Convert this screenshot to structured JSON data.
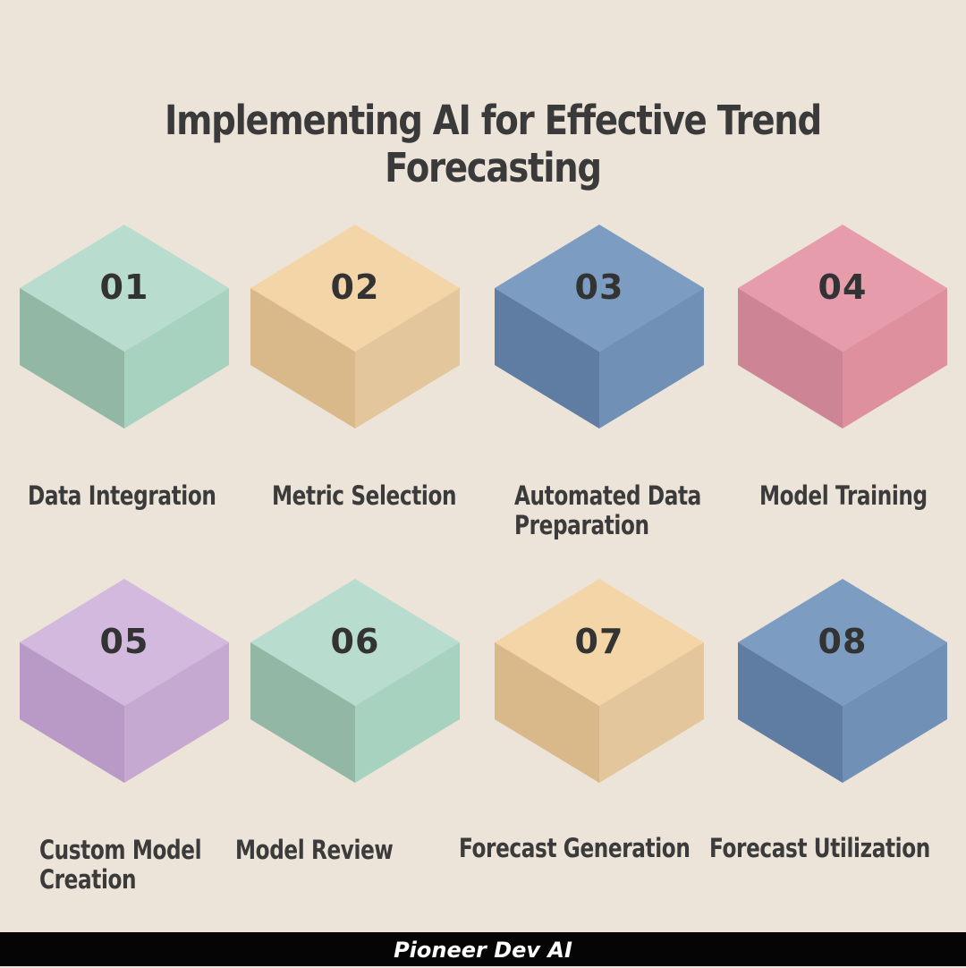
{
  "title": "Implementing AI for Effective Trend Forecasting",
  "steps": [
    {
      "number": "01",
      "label_lines": [
        "Data Integration"
      ],
      "colors": {
        "top": "#b8dccd",
        "left": "#92b8a5",
        "right": "#a7d2bf"
      }
    },
    {
      "number": "02",
      "label_lines": [
        "Metric Selection"
      ],
      "colors": {
        "top": "#f4d5a8",
        "left": "#d9b88a",
        "right": "#e3c69b"
      }
    },
    {
      "number": "03",
      "label_lines": [
        "Automated Data",
        "Preparation"
      ],
      "colors": {
        "top": "#7c9cc2",
        "left": "#5f7ca2",
        "right": "#7090b6"
      }
    },
    {
      "number": "04",
      "label_lines": [
        "Model Training"
      ],
      "colors": {
        "top": "#e79cab",
        "left": "#cd8595",
        "right": "#df909f"
      }
    },
    {
      "number": "05",
      "label_lines": [
        "Custom Model",
        "Creation"
      ],
      "colors": {
        "top": "#d3b9de",
        "left": "#b999c6",
        "right": "#c6a9d1"
      }
    },
    {
      "number": "06",
      "label_lines": [
        "Model Review"
      ],
      "colors": {
        "top": "#b8dccd",
        "left": "#92b8a5",
        "right": "#a7d2bf"
      }
    },
    {
      "number": "07",
      "label_lines": [
        "Forecast Generation"
      ],
      "colors": {
        "top": "#f4d5a8",
        "left": "#d9b88a",
        "right": "#e3c69b"
      }
    },
    {
      "number": "08",
      "label_lines": [
        "Forecast  Utilization"
      ],
      "colors": {
        "top": "#7c9cc2",
        "left": "#5f7ca2",
        "right": "#7090b6"
      }
    }
  ],
  "footer": "Pioneer Dev AI"
}
